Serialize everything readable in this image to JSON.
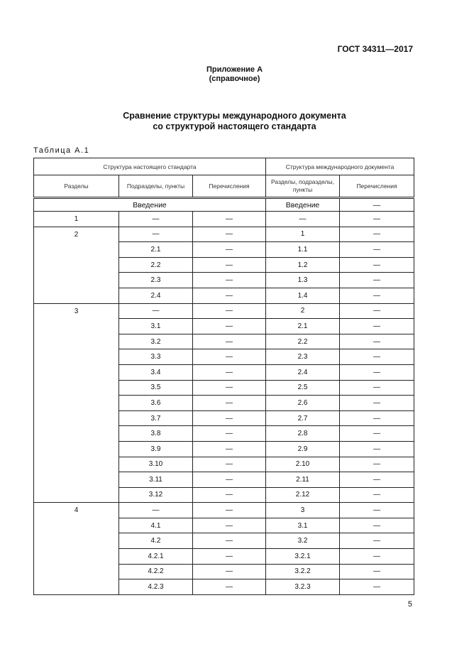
{
  "header": {
    "doc_number": "ГОСТ 34311—2017"
  },
  "appendix": {
    "title": "Приложение А",
    "subtitle": "(справочное)"
  },
  "title": {
    "line1": "Сравнение структуры международного документа",
    "line2": "со структурой настоящего стандарта"
  },
  "table": {
    "label": "Таблица А.1",
    "group_headers": [
      "Структура настоящего стандарта",
      "Структура международного документа"
    ],
    "columns": [
      "Разделы",
      "Подразделы, пункты",
      "Перечисления",
      "Разделы, подразделы, пункты",
      "Перечисления"
    ],
    "intro": {
      "left": "Введение",
      "right": "Введение",
      "right_enum": "—"
    },
    "sections": [
      {
        "section": "1",
        "rows": [
          [
            "—",
            "—",
            "—",
            "—"
          ]
        ]
      },
      {
        "section": "2",
        "rows": [
          [
            "—",
            "—",
            "1",
            "—"
          ],
          [
            "2.1",
            "—",
            "1.1",
            "—"
          ],
          [
            "2.2",
            "—",
            "1.2",
            "—"
          ],
          [
            "2.3",
            "—",
            "1.3",
            "—"
          ],
          [
            "2.4",
            "—",
            "1.4",
            "—"
          ]
        ]
      },
      {
        "section": "3",
        "rows": [
          [
            "—",
            "—",
            "2",
            "—"
          ],
          [
            "3.1",
            "—",
            "2.1",
            "—"
          ],
          [
            "3.2",
            "—",
            "2.2",
            "—"
          ],
          [
            "3.3",
            "—",
            "2.3",
            "—"
          ],
          [
            "3.4",
            "—",
            "2.4",
            "—"
          ],
          [
            "3.5",
            "—",
            "2.5",
            "—"
          ],
          [
            "3.6",
            "—",
            "2.6",
            "—"
          ],
          [
            "3.7",
            "—",
            "2.7",
            "—"
          ],
          [
            "3.8",
            "—",
            "2.8",
            "—"
          ],
          [
            "3.9",
            "—",
            "2.9",
            "—"
          ],
          [
            "3.10",
            "—",
            "2.10",
            "—"
          ],
          [
            "3.11",
            "—",
            "2.11",
            "—"
          ],
          [
            "3.12",
            "—",
            "2.12",
            "—"
          ]
        ]
      },
      {
        "section": "4",
        "rows": [
          [
            "—",
            "—",
            "3",
            "—"
          ],
          [
            "4.1",
            "—",
            "3.1",
            "—"
          ],
          [
            "4.2",
            "—",
            "3.2",
            "—"
          ],
          [
            "4.2.1",
            "—",
            "3.2.1",
            "—"
          ],
          [
            "4.2.2",
            "—",
            "3.2.2",
            "—"
          ],
          [
            "4.2.3",
            "—",
            "3.2.3",
            "—"
          ]
        ]
      }
    ]
  },
  "page_number": "5"
}
